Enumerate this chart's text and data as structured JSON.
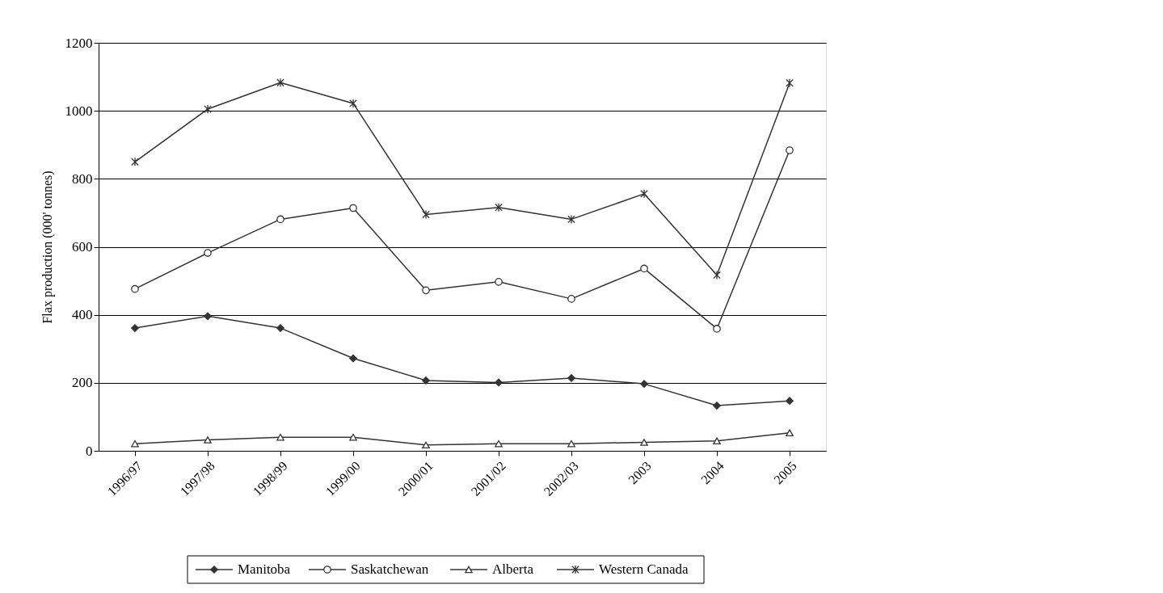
{
  "chart_data": {
    "type": "line",
    "ylabel": "Flax production (000' tonnes)",
    "categories": [
      "1996/97",
      "1997/98",
      "1998/99",
      "1999/00",
      "2000/01",
      "2001/02",
      "2002/03",
      "2003",
      "2004",
      "2005"
    ],
    "series": [
      {
        "name": "Manitoba",
        "color": "#333333",
        "marker": "diamond",
        "values": [
          361,
          396,
          361,
          272,
          207,
          201,
          214,
          197,
          133,
          147
        ]
      },
      {
        "name": "Saskatchewan",
        "color": "#333333",
        "marker": "circle",
        "values": [
          476,
          582,
          681,
          714,
          472,
          497,
          447,
          536,
          359,
          884
        ]
      },
      {
        "name": "Alberta",
        "color": "#333333",
        "marker": "triangle",
        "values": [
          21,
          32,
          40,
          40,
          17,
          21,
          21,
          25,
          29,
          53
        ]
      },
      {
        "name": "Western Canada",
        "color": "#333333",
        "marker": "cross",
        "values": [
          850,
          1005,
          1083,
          1022,
          695,
          716,
          681,
          756,
          517,
          1082
        ]
      }
    ],
    "ylim": [
      0,
      1200
    ],
    "yticks": [
      0,
      200,
      400,
      600,
      800,
      {
        "value": 1000,
        "label": "1000"
      },
      {
        "value": 1200,
        "label": "1200"
      }
    ],
    "grid": "y",
    "legend": "bottom",
    "line_style": "solid"
  }
}
